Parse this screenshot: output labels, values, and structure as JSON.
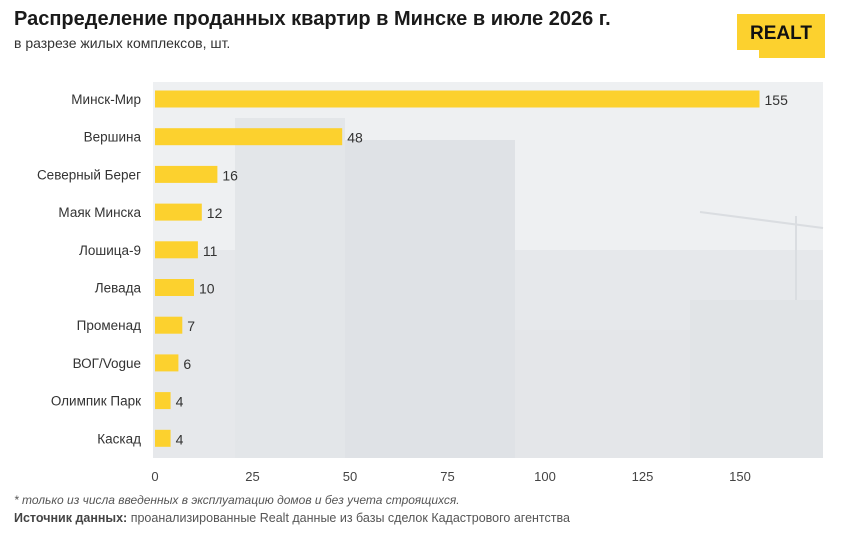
{
  "header": {
    "title": "Распределение проданных квартир в Минске в июле 2026 г.",
    "subtitle": "в разрезе жилых комплексов, шт."
  },
  "logo": {
    "text": "REALT",
    "name": "realt-logo"
  },
  "colors": {
    "bar": "#fcd12e",
    "text": "#333333",
    "background_photo": "#e9ecef"
  },
  "chart_data": {
    "type": "bar",
    "orientation": "horizontal",
    "categories": [
      "Минск-Мир",
      "Вершина",
      "Северный Берег",
      "Маяк Минска",
      "Лошица-9",
      "Левада",
      "Променад",
      "ВОГ/Vogue",
      "Олимпик Парк",
      "Каскад"
    ],
    "values": [
      155,
      48,
      16,
      12,
      11,
      10,
      7,
      6,
      4,
      4
    ],
    "xticks": [
      0,
      25,
      50,
      75,
      100,
      125,
      150
    ],
    "xlim": [
      0,
      170
    ],
    "data_labels": true,
    "grid": false,
    "legend": "none"
  },
  "footer": {
    "note": "* только из числа введенных в эксплуатацию домов и без учета строящихся.",
    "source_label": "Источник данных:",
    "source_text": " проанализированные Realt данные из базы сделок Кадастрового агентства"
  }
}
